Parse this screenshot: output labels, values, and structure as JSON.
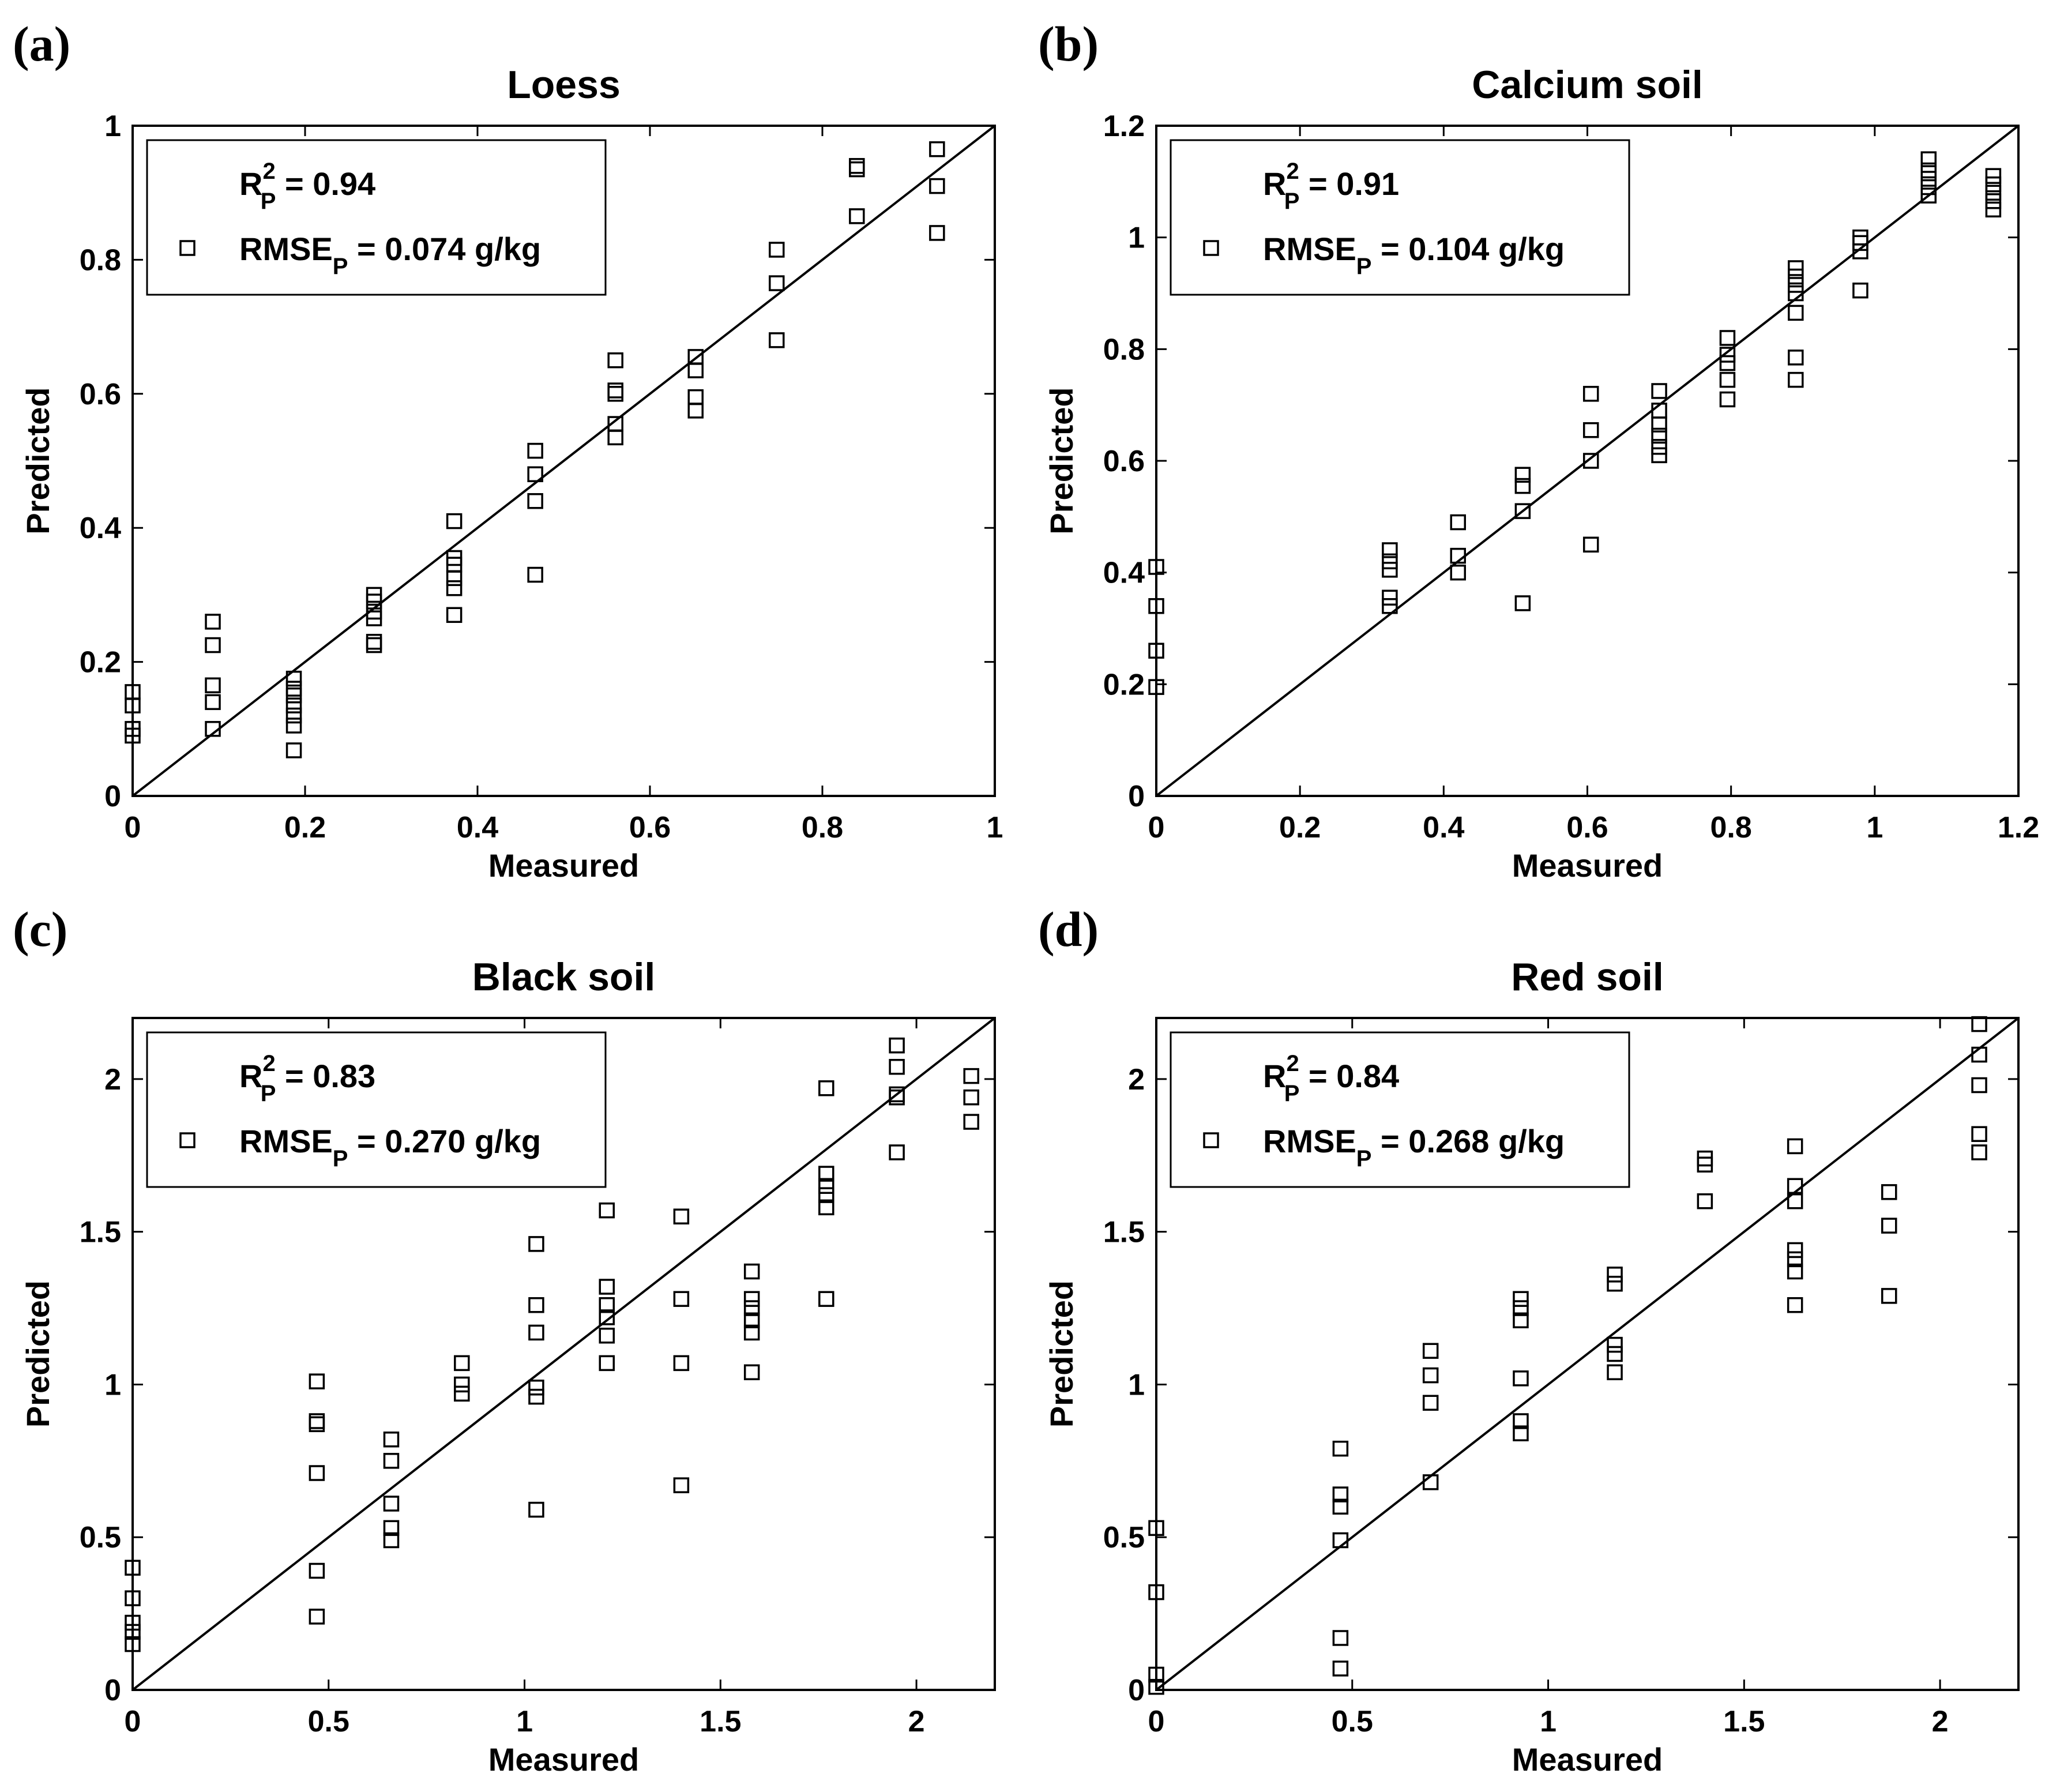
{
  "chart_data": [
    {
      "type": "scatter",
      "panel_label": "(a)",
      "title": "Loess",
      "xlabel": "Measured",
      "ylabel": "Predicted",
      "xlim": [
        0,
        1
      ],
      "ylim": [
        0,
        1
      ],
      "xticks": [
        0,
        0.2,
        0.4,
        0.6,
        0.8,
        1
      ],
      "yticks": [
        0,
        0.2,
        0.4,
        0.6,
        0.8,
        1
      ],
      "xtick_labels": [
        "0",
        "0.2",
        "0.4",
        "0.6",
        "0.8",
        "1"
      ],
      "ytick_labels": [
        "0",
        "0.2",
        "0.4",
        "0.6",
        "0.8",
        "1"
      ],
      "legend": {
        "r2_label": "R",
        "r2_sup": "2",
        "r2_sub": "P",
        "r2_value": " = 0.94",
        "rmse_label": "RMSE",
        "rmse_sub": "P",
        "rmse_value": " = 0.074 g/kg"
      },
      "reference_line": "1:1",
      "points": [
        [
          0.0,
          0.09
        ],
        [
          0.0,
          0.1
        ],
        [
          0.0,
          0.135
        ],
        [
          0.0,
          0.155
        ],
        [
          0.093,
          0.1
        ],
        [
          0.093,
          0.14
        ],
        [
          0.093,
          0.165
        ],
        [
          0.093,
          0.225
        ],
        [
          0.093,
          0.26
        ],
        [
          0.187,
          0.068
        ],
        [
          0.187,
          0.105
        ],
        [
          0.187,
          0.12
        ],
        [
          0.187,
          0.135
        ],
        [
          0.187,
          0.15
        ],
        [
          0.187,
          0.16
        ],
        [
          0.187,
          0.175
        ],
        [
          0.28,
          0.225
        ],
        [
          0.28,
          0.23
        ],
        [
          0.28,
          0.265
        ],
        [
          0.28,
          0.275
        ],
        [
          0.28,
          0.29
        ],
        [
          0.28,
          0.3
        ],
        [
          0.373,
          0.27
        ],
        [
          0.373,
          0.31
        ],
        [
          0.373,
          0.325
        ],
        [
          0.373,
          0.345
        ],
        [
          0.373,
          0.355
        ],
        [
          0.373,
          0.41
        ],
        [
          0.467,
          0.33
        ],
        [
          0.467,
          0.44
        ],
        [
          0.467,
          0.48
        ],
        [
          0.467,
          0.515
        ],
        [
          0.56,
          0.535
        ],
        [
          0.56,
          0.555
        ],
        [
          0.56,
          0.6
        ],
        [
          0.56,
          0.605
        ],
        [
          0.56,
          0.65
        ],
        [
          0.653,
          0.575
        ],
        [
          0.653,
          0.595
        ],
        [
          0.653,
          0.635
        ],
        [
          0.653,
          0.655
        ],
        [
          0.747,
          0.68
        ],
        [
          0.747,
          0.765
        ],
        [
          0.747,
          0.815
        ],
        [
          0.84,
          0.865
        ],
        [
          0.84,
          0.935
        ],
        [
          0.84,
          0.94
        ],
        [
          0.933,
          0.84
        ],
        [
          0.933,
          0.91
        ],
        [
          0.933,
          0.965
        ]
      ]
    },
    {
      "type": "scatter",
      "panel_label": "(b)",
      "title": "Calcium soil",
      "xlabel": "Measured",
      "ylabel": "Predicted",
      "xlim": [
        0,
        1.2
      ],
      "ylim": [
        0,
        1.2
      ],
      "xticks": [
        0,
        0.2,
        0.4,
        0.6,
        0.8,
        1,
        1.2
      ],
      "yticks": [
        0,
        0.2,
        0.4,
        0.6,
        0.8,
        1,
        1.2
      ],
      "xtick_labels": [
        "0",
        "0.2",
        "0.4",
        "0.6",
        "0.8",
        "1",
        "1.2"
      ],
      "ytick_labels": [
        "0",
        "0.2",
        "0.4",
        "0.6",
        "0.8",
        "1",
        "1.2"
      ],
      "legend": {
        "r2_label": "R",
        "r2_sup": "2",
        "r2_sub": "P",
        "r2_value": " = 0.91",
        "rmse_label": "RMSE",
        "rmse_sub": "P",
        "rmse_value": " = 0.104 g/kg"
      },
      "reference_line": "1:1",
      "points": [
        [
          0.0,
          0.195
        ],
        [
          0.0,
          0.26
        ],
        [
          0.0,
          0.34
        ],
        [
          0.0,
          0.41
        ],
        [
          0.325,
          0.34
        ],
        [
          0.325,
          0.355
        ],
        [
          0.325,
          0.405
        ],
        [
          0.325,
          0.42
        ],
        [
          0.325,
          0.44
        ],
        [
          0.42,
          0.4
        ],
        [
          0.42,
          0.43
        ],
        [
          0.42,
          0.49
        ],
        [
          0.51,
          0.345
        ],
        [
          0.51,
          0.51
        ],
        [
          0.51,
          0.555
        ],
        [
          0.51,
          0.575
        ],
        [
          0.605,
          0.45
        ],
        [
          0.605,
          0.6
        ],
        [
          0.605,
          0.655
        ],
        [
          0.605,
          0.72
        ],
        [
          0.7,
          0.61
        ],
        [
          0.7,
          0.625
        ],
        [
          0.7,
          0.645
        ],
        [
          0.7,
          0.665
        ],
        [
          0.7,
          0.69
        ],
        [
          0.7,
          0.725
        ],
        [
          0.795,
          0.71
        ],
        [
          0.795,
          0.745
        ],
        [
          0.795,
          0.775
        ],
        [
          0.795,
          0.79
        ],
        [
          0.795,
          0.82
        ],
        [
          0.89,
          0.745
        ],
        [
          0.89,
          0.785
        ],
        [
          0.89,
          0.865
        ],
        [
          0.89,
          0.9
        ],
        [
          0.89,
          0.915
        ],
        [
          0.89,
          0.93
        ],
        [
          0.89,
          0.945
        ],
        [
          0.98,
          0.905
        ],
        [
          0.98,
          0.975
        ],
        [
          0.98,
          0.99
        ],
        [
          0.98,
          1.0
        ],
        [
          1.075,
          1.075
        ],
        [
          1.075,
          1.09
        ],
        [
          1.075,
          1.105
        ],
        [
          1.075,
          1.12
        ],
        [
          1.075,
          1.14
        ],
        [
          1.165,
          1.05
        ],
        [
          1.165,
          1.065
        ],
        [
          1.165,
          1.08
        ],
        [
          1.165,
          1.095
        ],
        [
          1.165,
          1.11
        ]
      ]
    },
    {
      "type": "scatter",
      "panel_label": "(c)",
      "title": "Black soil",
      "xlabel": "Measured",
      "ylabel": "Predicted",
      "xlim": [
        0,
        2.2
      ],
      "ylim": [
        0,
        2.2
      ],
      "xticks": [
        0,
        0.5,
        1,
        1.5,
        2
      ],
      "yticks": [
        0,
        0.5,
        1,
        1.5,
        2
      ],
      "xtick_labels": [
        "0",
        "0.5",
        "1",
        "1.5",
        "2"
      ],
      "ytick_labels": [
        "0",
        "0.5",
        "1",
        "1.5",
        "2"
      ],
      "legend": {
        "r2_label": "R",
        "r2_sup": "2",
        "r2_sub": "P",
        "r2_value": " = 0.83",
        "rmse_label": "RMSE",
        "rmse_sub": "P",
        "rmse_value": " = 0.270 g/kg"
      },
      "reference_line": "1:1",
      "points": [
        [
          0.0,
          0.15
        ],
        [
          0.0,
          0.19
        ],
        [
          0.0,
          0.22
        ],
        [
          0.0,
          0.3
        ],
        [
          0.0,
          0.4
        ],
        [
          0.47,
          0.24
        ],
        [
          0.47,
          0.39
        ],
        [
          0.47,
          0.71
        ],
        [
          0.47,
          0.87
        ],
        [
          0.47,
          0.88
        ],
        [
          0.47,
          1.01
        ],
        [
          0.66,
          0.49
        ],
        [
          0.66,
          0.53
        ],
        [
          0.66,
          0.61
        ],
        [
          0.66,
          0.75
        ],
        [
          0.66,
          0.82
        ],
        [
          0.84,
          0.97
        ],
        [
          0.84,
          1.0
        ],
        [
          0.84,
          1.07
        ],
        [
          1.03,
          0.59
        ],
        [
          1.03,
          0.96
        ],
        [
          1.03,
          0.99
        ],
        [
          1.03,
          1.17
        ],
        [
          1.03,
          1.26
        ],
        [
          1.03,
          1.46
        ],
        [
          1.21,
          1.07
        ],
        [
          1.21,
          1.16
        ],
        [
          1.21,
          1.22
        ],
        [
          1.21,
          1.26
        ],
        [
          1.21,
          1.32
        ],
        [
          1.21,
          1.57
        ],
        [
          1.4,
          0.67
        ],
        [
          1.4,
          1.07
        ],
        [
          1.4,
          1.28
        ],
        [
          1.4,
          1.55
        ],
        [
          1.58,
          1.04
        ],
        [
          1.58,
          1.17
        ],
        [
          1.58,
          1.21
        ],
        [
          1.58,
          1.25
        ],
        [
          1.58,
          1.28
        ],
        [
          1.58,
          1.37
        ],
        [
          1.77,
          1.28
        ],
        [
          1.77,
          1.58
        ],
        [
          1.77,
          1.62
        ],
        [
          1.77,
          1.65
        ],
        [
          1.77,
          1.69
        ],
        [
          1.77,
          1.97
        ],
        [
          1.95,
          1.76
        ],
        [
          1.95,
          1.94
        ],
        [
          1.95,
          1.95
        ],
        [
          1.95,
          2.04
        ],
        [
          1.95,
          2.11
        ],
        [
          2.14,
          1.86
        ],
        [
          2.14,
          1.94
        ],
        [
          2.14,
          2.01
        ]
      ]
    },
    {
      "type": "scatter",
      "panel_label": "(d)",
      "title": "Red soil",
      "xlabel": "Measured",
      "ylabel": "Predicted",
      "xlim": [
        0,
        2.2
      ],
      "ylim": [
        0,
        2.2
      ],
      "xticks": [
        0,
        0.5,
        1,
        1.5,
        2
      ],
      "yticks": [
        0,
        0.5,
        1,
        1.5,
        2
      ],
      "xtick_labels": [
        "0",
        "0.5",
        "1",
        "1.5",
        "2"
      ],
      "ytick_labels": [
        "0",
        "0.5",
        "1",
        "1.5",
        "2"
      ],
      "legend": {
        "r2_label": "R",
        "r2_sup": "2",
        "r2_sub": "P",
        "r2_value": " = 0.84",
        "rmse_label": "RMSE",
        "rmse_sub": "P",
        "rmse_value": " = 0.268 g/kg"
      },
      "reference_line": "1:1",
      "points": [
        [
          0.0,
          0.01
        ],
        [
          0.0,
          0.05
        ],
        [
          0.0,
          0.32
        ],
        [
          0.0,
          0.53
        ],
        [
          0.47,
          0.07
        ],
        [
          0.47,
          0.17
        ],
        [
          0.47,
          0.49
        ],
        [
          0.47,
          0.6
        ],
        [
          0.47,
          0.64
        ],
        [
          0.47,
          0.79
        ],
        [
          0.7,
          0.68
        ],
        [
          0.7,
          0.94
        ],
        [
          0.7,
          1.03
        ],
        [
          0.7,
          1.11
        ],
        [
          0.93,
          0.84
        ],
        [
          0.93,
          0.88
        ],
        [
          0.93,
          1.02
        ],
        [
          0.93,
          1.21
        ],
        [
          0.93,
          1.25
        ],
        [
          0.93,
          1.28
        ],
        [
          1.17,
          1.04
        ],
        [
          1.17,
          1.1
        ],
        [
          1.17,
          1.13
        ],
        [
          1.17,
          1.33
        ],
        [
          1.17,
          1.36
        ],
        [
          1.4,
          1.6
        ],
        [
          1.4,
          1.72
        ],
        [
          1.4,
          1.74
        ],
        [
          1.63,
          1.26
        ],
        [
          1.63,
          1.37
        ],
        [
          1.63,
          1.41
        ],
        [
          1.63,
          1.44
        ],
        [
          1.63,
          1.6
        ],
        [
          1.63,
          1.65
        ],
        [
          1.63,
          1.78
        ],
        [
          1.87,
          1.29
        ],
        [
          1.87,
          1.52
        ],
        [
          1.87,
          1.63
        ],
        [
          2.1,
          1.76
        ],
        [
          2.1,
          1.82
        ],
        [
          2.1,
          1.98
        ],
        [
          2.1,
          2.08
        ],
        [
          2.1,
          2.18
        ]
      ]
    }
  ]
}
